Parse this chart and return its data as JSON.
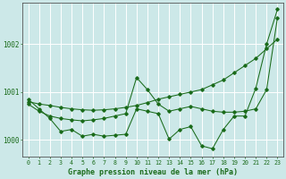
{
  "title": "Graphe pression niveau de la mer (hPa)",
  "xlabel_hours": [
    0,
    1,
    2,
    3,
    4,
    5,
    6,
    7,
    8,
    9,
    10,
    11,
    12,
    13,
    14,
    15,
    16,
    17,
    18,
    19,
    20,
    21,
    22,
    23
  ],
  "ylim": [
    999.65,
    1002.85
  ],
  "yticks": [
    1000,
    1001,
    1002
  ],
  "background_color": "#cce8e8",
  "grid_color": "#ffffff",
  "line_color": "#1a6b1a",
  "line1": [
    1000.8,
    1000.75,
    1000.72,
    1000.68,
    1000.65,
    1000.63,
    1000.62,
    1000.63,
    1000.65,
    1000.68,
    1000.72,
    1000.78,
    1000.85,
    1000.9,
    1000.95,
    1001.0,
    1001.05,
    1001.15,
    1001.25,
    1001.4,
    1001.55,
    1001.7,
    1001.9,
    1002.1
  ],
  "line2": [
    1000.75,
    1000.6,
    1000.5,
    1000.45,
    1000.42,
    1000.4,
    1000.42,
    1000.45,
    1000.5,
    1000.55,
    1001.3,
    1001.05,
    1000.75,
    1000.6,
    1000.65,
    1000.7,
    1000.65,
    1000.6,
    1000.58,
    1000.58,
    1000.6,
    1000.65,
    1001.05,
    1002.55
  ],
  "line3": [
    1000.85,
    1000.65,
    1000.45,
    1000.18,
    1000.22,
    1000.08,
    1000.12,
    1000.08,
    1000.1,
    1000.12,
    1000.65,
    1000.6,
    1000.55,
    1000.02,
    1000.22,
    1000.28,
    999.88,
    999.82,
    1000.22,
    1000.5,
    1000.5,
    1001.08,
    1002.0,
    1002.72
  ]
}
